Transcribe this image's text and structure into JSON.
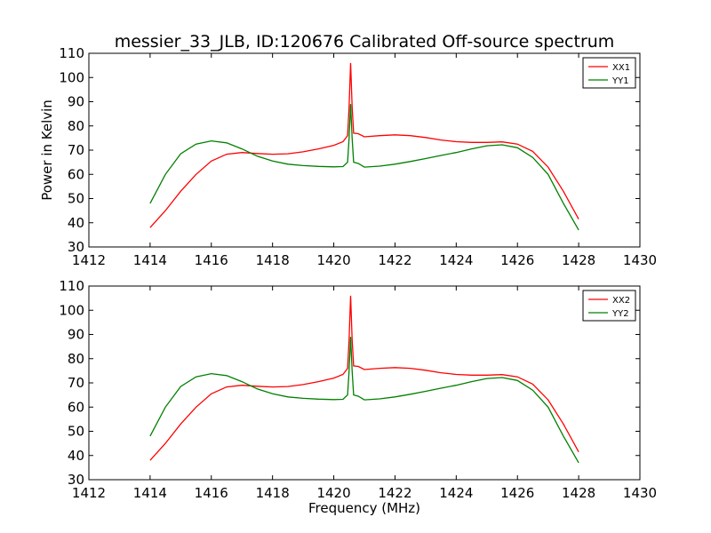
{
  "figure": {
    "title": "messier_33_JLB, ID:120676 Calibrated Off-source spectrum"
  },
  "chart_data": [
    {
      "type": "line",
      "title": "messier_33_JLB, ID:120676 Calibrated Off-source spectrum",
      "xlabel": "",
      "ylabel": "Power in Kelvin",
      "xlim": [
        1412,
        1430
      ],
      "ylim": [
        30,
        110
      ],
      "xticks": [
        "1412",
        "1414",
        "1416",
        "1418",
        "1420",
        "1422",
        "1424",
        "1426",
        "1428",
        "1430"
      ],
      "yticks": [
        "30",
        "40",
        "50",
        "60",
        "70",
        "80",
        "90",
        "100",
        "110"
      ],
      "grid": false,
      "legend": "top-right",
      "series": [
        {
          "name": "XX1",
          "color": "#ff0000",
          "points": [
            [
              1414.0,
              38
            ],
            [
              1414.5,
              45
            ],
            [
              1415.0,
              53
            ],
            [
              1415.5,
              60
            ],
            [
              1416.0,
              65.5
            ],
            [
              1416.5,
              68.3
            ],
            [
              1417.0,
              69
            ],
            [
              1417.5,
              68.6
            ],
            [
              1418.0,
              68.3
            ],
            [
              1418.5,
              68.5
            ],
            [
              1419.0,
              69.3
            ],
            [
              1419.5,
              70.5
            ],
            [
              1420.0,
              72
            ],
            [
              1420.3,
              73.5
            ],
            [
              1420.45,
              76
            ],
            [
              1420.5,
              88
            ],
            [
              1420.55,
              106
            ],
            [
              1420.6,
              88
            ],
            [
              1420.65,
              77
            ],
            [
              1420.8,
              76.8
            ],
            [
              1421.0,
              75.5
            ],
            [
              1421.5,
              76
            ],
            [
              1422.0,
              76.3
            ],
            [
              1422.5,
              76
            ],
            [
              1423.0,
              75.2
            ],
            [
              1423.5,
              74.2
            ],
            [
              1424.0,
              73.5
            ],
            [
              1424.5,
              73.2
            ],
            [
              1425.0,
              73.2
            ],
            [
              1425.5,
              73.4
            ],
            [
              1426.0,
              72.5
            ],
            [
              1426.5,
              69.5
            ],
            [
              1427.0,
              63
            ],
            [
              1427.5,
              53
            ],
            [
              1428.0,
              41.5
            ]
          ]
        },
        {
          "name": "YY1",
          "color": "#008000",
          "points": [
            [
              1414.0,
              48
            ],
            [
              1414.5,
              60
            ],
            [
              1415.0,
              68.5
            ],
            [
              1415.5,
              72.5
            ],
            [
              1416.0,
              73.8
            ],
            [
              1416.5,
              73
            ],
            [
              1417.0,
              70.5
            ],
            [
              1417.5,
              67.5
            ],
            [
              1418.0,
              65.5
            ],
            [
              1418.5,
              64.2
            ],
            [
              1419.0,
              63.6
            ],
            [
              1419.5,
              63.3
            ],
            [
              1420.0,
              63.1
            ],
            [
              1420.3,
              63.2
            ],
            [
              1420.45,
              65
            ],
            [
              1420.5,
              75
            ],
            [
              1420.55,
              89
            ],
            [
              1420.6,
              75
            ],
            [
              1420.65,
              65
            ],
            [
              1420.8,
              64.5
            ],
            [
              1421.0,
              63
            ],
            [
              1421.5,
              63.4
            ],
            [
              1422.0,
              64.2
            ],
            [
              1422.5,
              65.3
            ],
            [
              1423.0,
              66.5
            ],
            [
              1423.5,
              67.8
            ],
            [
              1424.0,
              69
            ],
            [
              1424.5,
              70.5
            ],
            [
              1425.0,
              71.8
            ],
            [
              1425.5,
              72.2
            ],
            [
              1426.0,
              71
            ],
            [
              1426.5,
              67
            ],
            [
              1427.0,
              60
            ],
            [
              1427.5,
              48
            ],
            [
              1428.0,
              37
            ]
          ]
        }
      ]
    },
    {
      "type": "line",
      "title": "",
      "xlabel": "Frequency (MHz)",
      "ylabel": "",
      "xlim": [
        1412,
        1430
      ],
      "ylim": [
        30,
        110
      ],
      "xticks": [
        "1412",
        "1414",
        "1416",
        "1418",
        "1420",
        "1422",
        "1424",
        "1426",
        "1428",
        "1430"
      ],
      "yticks": [
        "30",
        "40",
        "50",
        "60",
        "70",
        "80",
        "90",
        "100",
        "110"
      ],
      "grid": false,
      "legend": "top-right",
      "series": [
        {
          "name": "XX2",
          "color": "#ff0000",
          "points": [
            [
              1414.0,
              38
            ],
            [
              1414.5,
              45
            ],
            [
              1415.0,
              53
            ],
            [
              1415.5,
              60
            ],
            [
              1416.0,
              65.5
            ],
            [
              1416.5,
              68.3
            ],
            [
              1417.0,
              69
            ],
            [
              1417.5,
              68.6
            ],
            [
              1418.0,
              68.3
            ],
            [
              1418.5,
              68.5
            ],
            [
              1419.0,
              69.3
            ],
            [
              1419.5,
              70.5
            ],
            [
              1420.0,
              72
            ],
            [
              1420.3,
              73.5
            ],
            [
              1420.45,
              76
            ],
            [
              1420.5,
              88
            ],
            [
              1420.55,
              106
            ],
            [
              1420.6,
              88
            ],
            [
              1420.65,
              77
            ],
            [
              1420.8,
              76.8
            ],
            [
              1421.0,
              75.5
            ],
            [
              1421.5,
              76
            ],
            [
              1422.0,
              76.3
            ],
            [
              1422.5,
              76
            ],
            [
              1423.0,
              75.2
            ],
            [
              1423.5,
              74.2
            ],
            [
              1424.0,
              73.5
            ],
            [
              1424.5,
              73.2
            ],
            [
              1425.0,
              73.2
            ],
            [
              1425.5,
              73.4
            ],
            [
              1426.0,
              72.5
            ],
            [
              1426.5,
              69.5
            ],
            [
              1427.0,
              63
            ],
            [
              1427.5,
              53
            ],
            [
              1428.0,
              41.5
            ]
          ]
        },
        {
          "name": "YY2",
          "color": "#008000",
          "points": [
            [
              1414.0,
              48
            ],
            [
              1414.5,
              60
            ],
            [
              1415.0,
              68.5
            ],
            [
              1415.5,
              72.5
            ],
            [
              1416.0,
              73.8
            ],
            [
              1416.5,
              73
            ],
            [
              1417.0,
              70.5
            ],
            [
              1417.5,
              67.5
            ],
            [
              1418.0,
              65.5
            ],
            [
              1418.5,
              64.2
            ],
            [
              1419.0,
              63.6
            ],
            [
              1419.5,
              63.3
            ],
            [
              1420.0,
              63.1
            ],
            [
              1420.3,
              63.2
            ],
            [
              1420.45,
              65
            ],
            [
              1420.5,
              75
            ],
            [
              1420.55,
              89
            ],
            [
              1420.6,
              75
            ],
            [
              1420.65,
              65
            ],
            [
              1420.8,
              64.5
            ],
            [
              1421.0,
              63
            ],
            [
              1421.5,
              63.4
            ],
            [
              1422.0,
              64.2
            ],
            [
              1422.5,
              65.3
            ],
            [
              1423.0,
              66.5
            ],
            [
              1423.5,
              67.8
            ],
            [
              1424.0,
              69
            ],
            [
              1424.5,
              70.5
            ],
            [
              1425.0,
              71.8
            ],
            [
              1425.5,
              72.2
            ],
            [
              1426.0,
              71
            ],
            [
              1426.5,
              67
            ],
            [
              1427.0,
              60
            ],
            [
              1427.5,
              48
            ],
            [
              1428.0,
              37
            ]
          ]
        }
      ]
    }
  ]
}
